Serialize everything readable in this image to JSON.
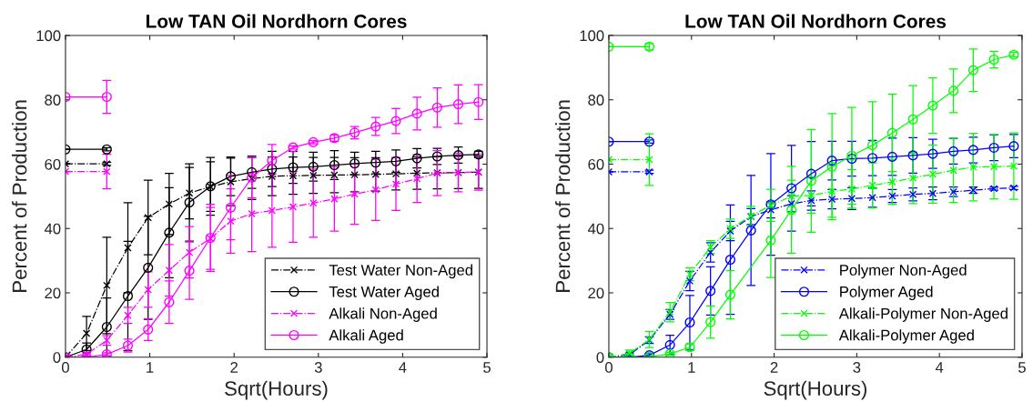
{
  "chart_data": [
    {
      "type": "line",
      "title": "Low TAN Oil Nordhorn Cores",
      "xlabel": "Sqrt(Hours)",
      "ylabel": "Percent of Production",
      "xlim": [
        0,
        5
      ],
      "ylim": [
        0,
        100
      ],
      "xticks": [
        0,
        1,
        2,
        3,
        4,
        5
      ],
      "yticks": [
        0,
        20,
        40,
        60,
        80,
        100
      ],
      "grid": false,
      "legend": "bottom right",
      "x": [
        0,
        0.25,
        0.49,
        0.74,
        0.98,
        1.23,
        1.47,
        1.72,
        1.96,
        2.21,
        2.45,
        2.7,
        2.94,
        3.19,
        3.43,
        3.68,
        3.92,
        4.17,
        4.41,
        4.66,
        4.9
      ],
      "series": [
        {
          "name": "Test Water Non-Aged",
          "color": "#000000",
          "marker": "cross",
          "line_style": "dashdot",
          "values": [
            0,
            7.4,
            22.3,
            34,
            43.4,
            47.6,
            51,
            53,
            54.5,
            55.5,
            56.2,
            56.4,
            56.5,
            56.6,
            56.7,
            56.8,
            57,
            57.2,
            57.3,
            57.4,
            57.5
          ],
          "errors": [
            null,
            5.3,
            15,
            14,
            11.6,
            9.5,
            8,
            7.7,
            7.4,
            6.5,
            6,
            5.8,
            5.6,
            5.5,
            5.3,
            5.2,
            5,
            5,
            5,
            5,
            5
          ]
        },
        {
          "name": "Test Water Aged",
          "color": "#000000",
          "marker": "circle",
          "line_style": "solid",
          "values": [
            0,
            2.4,
            9.4,
            19,
            27.8,
            38.7,
            48.1,
            53.1,
            56.2,
            57.5,
            58.5,
            59,
            59.2,
            59.7,
            60.2,
            60.5,
            60.9,
            61.8,
            62.4,
            62.8,
            63
          ],
          "errors": [
            null,
            2,
            9,
            17,
            16,
            14,
            12,
            9,
            6,
            5,
            5.5,
            5,
            4.5,
            4.5,
            3.5,
            3.5,
            3.5,
            3,
            2.5,
            2.5,
            1
          ]
        },
        {
          "name": "Alkali Non-Aged",
          "color": "#ff00ff",
          "marker": "cross",
          "line_style": "dashdot",
          "values": [
            0,
            0.9,
            5.2,
            13,
            21,
            27,
            32.6,
            36.9,
            42.3,
            44.6,
            45.6,
            46.7,
            47.9,
            49.2,
            50.7,
            52,
            53.8,
            55.5,
            57.2,
            57.4,
            57.5
          ],
          "errors": [
            null,
            0.5,
            1.5,
            2.5,
            5.5,
            8,
            8,
            9.6,
            10,
            11.8,
            11.4,
            11,
            10.6,
            10,
            9.4,
            9.5,
            8.2,
            7.4,
            7,
            6,
            5.6
          ]
        },
        {
          "name": "Alkali Aged",
          "color": "#ff00ff",
          "marker": "circle",
          "line_style": "solid",
          "values": [
            0,
            0,
            0.9,
            3.6,
            8.6,
            17.1,
            26.9,
            37.1,
            46.5,
            55.8,
            61.1,
            65.2,
            66.8,
            68.1,
            69.8,
            71.7,
            73.4,
            75.7,
            77.6,
            78.6,
            79.3
          ],
          "errors": [
            null,
            0.3,
            0.5,
            2,
            3.4,
            6.6,
            8.9,
            10.4,
            10,
            6.3,
            5,
            0.5,
            0.5,
            1,
            1.9,
            2.8,
            3.9,
            5.1,
            6.1,
            6,
            5.4
          ]
        },
        {
          "color": "#000000",
          "marker": "cross",
          "line_style": "dashdot",
          "x": [
            0,
            0.49
          ],
          "values": [
            60.1,
            60.1
          ],
          "errors": [
            null,
            0.5
          ]
        },
        {
          "color": "#000000",
          "marker": "circle",
          "line_style": "solid",
          "x": [
            0,
            0.49
          ],
          "values": [
            64.6,
            64.6
          ],
          "errors": [
            null,
            0.5
          ]
        },
        {
          "color": "#ff00ff",
          "marker": "cross",
          "line_style": "dashdot",
          "x": [
            0,
            0.49
          ],
          "values": [
            57.7,
            57.7
          ],
          "errors": [
            null,
            5.4
          ]
        },
        {
          "color": "#ff00ff",
          "marker": "circle",
          "line_style": "solid",
          "x": [
            0,
            0.49
          ],
          "values": [
            80.9,
            80.9
          ],
          "errors": [
            null,
            5.1
          ]
        }
      ]
    },
    {
      "type": "line",
      "title": "Low TAN Oil Nordhorn Cores",
      "xlabel": "Sqrt(Hours)",
      "ylabel": "Percent of Production",
      "xlim": [
        0,
        5
      ],
      "ylim": [
        0,
        100
      ],
      "xticks": [
        0,
        1,
        2,
        3,
        4,
        5
      ],
      "yticks": [
        0,
        20,
        40,
        60,
        80,
        100
      ],
      "grid": false,
      "legend": "bottom right",
      "x": [
        0,
        0.25,
        0.49,
        0.74,
        0.98,
        1.23,
        1.47,
        1.72,
        1.96,
        2.21,
        2.45,
        2.7,
        2.94,
        3.19,
        3.43,
        3.68,
        3.92,
        4.17,
        4.41,
        4.66,
        4.9
      ],
      "series": [
        {
          "name": "Polymer Non-Aged",
          "color": "#0000ff",
          "marker": "cross",
          "line_style": "dashdot",
          "values": [
            0,
            0.8,
            5.3,
            13.3,
            23.7,
            32.6,
            39.2,
            43.7,
            45.8,
            47.7,
            48.7,
            49.1,
            49.3,
            49.6,
            50.1,
            50.6,
            50.9,
            51.4,
            51.9,
            52.4,
            52.6
          ],
          "errors": [
            null,
            0.5,
            1,
            1.5,
            3,
            3,
            3,
            2.5,
            2.5,
            2.5,
            3,
            3,
            3.4,
            3,
            2,
            2,
            2,
            1.5,
            1,
            0.5,
            0.5
          ]
        },
        {
          "name": "Polymer Aged",
          "color": "#0000ff",
          "marker": "circle",
          "line_style": "solid",
          "values": [
            0,
            0,
            0.6,
            3.8,
            10.8,
            20.6,
            30.3,
            39.4,
            47.5,
            52.5,
            57,
            61.1,
            61.7,
            61.9,
            62.3,
            62.7,
            63.2,
            64,
            64.4,
            65.1,
            65.6
          ],
          "errors": [
            null,
            0.3,
            0.5,
            3,
            8.4,
            7.5,
            17,
            17.1,
            15.8,
            13.3,
            10,
            6,
            5.4,
            5.5,
            5.8,
            5.5,
            4.5,
            4,
            4,
            4,
            3.6
          ]
        },
        {
          "name": "Alkali-Polymer Non-Aged",
          "color": "#00ff00",
          "marker": "cross",
          "line_style": "dashdot",
          "values": [
            0,
            1.2,
            5.5,
            14,
            25.8,
            34.2,
            39.9,
            43.9,
            47.2,
            50,
            50.3,
            51.5,
            52.3,
            53.4,
            54.5,
            55.7,
            56.9,
            58.1,
            59.1,
            59.2,
            59.4
          ],
          "errors": [
            null,
            1,
            2.5,
            3,
            2,
            2,
            3,
            3,
            5,
            5,
            5.5,
            8,
            6,
            7,
            7,
            8,
            9,
            10,
            10.5,
            10,
            10.3
          ]
        },
        {
          "name": "Alkali-Polymer Aged",
          "color": "#00ff00",
          "marker": "circle",
          "line_style": "solid",
          "x": [
            0,
            0.25,
            0.49,
            0.74,
            0.98,
            1.23,
            1.47,
            1.96,
            2.21,
            2.45,
            2.7,
            2.94,
            3.19,
            3.43,
            3.68,
            3.92,
            4.17,
            4.41,
            4.66,
            4.9
          ],
          "values": [
            0,
            0,
            0.1,
            1,
            3.1,
            10.9,
            19.4,
            36.3,
            45.8,
            54.8,
            59.2,
            62.6,
            65.9,
            69.7,
            73.9,
            78.2,
            82.8,
            89.2,
            92.5,
            94
          ],
          "errors": [
            null,
            0.3,
            0.3,
            0.5,
            1,
            5,
            7.5,
            11.5,
            13.5,
            16,
            16.5,
            15,
            13.5,
            12,
            10.5,
            8.6,
            6.8,
            6.6,
            2.6,
            0.7
          ]
        },
        {
          "color": "#0000ff",
          "marker": "cross",
          "line_style": "dashdot",
          "x": [
            0,
            0.49
          ],
          "values": [
            57.6,
            57.6
          ],
          "errors": [
            null,
            0.5
          ]
        },
        {
          "color": "#0000ff",
          "marker": "circle",
          "line_style": "solid",
          "x": [
            0,
            0.49
          ],
          "values": [
            67,
            67
          ],
          "errors": [
            null,
            0.5
          ]
        },
        {
          "color": "#00ff00",
          "marker": "cross",
          "line_style": "dashdot",
          "x": [
            0,
            0.49
          ],
          "values": [
            61.4,
            61.4
          ],
          "errors": [
            null,
            8
          ]
        },
        {
          "color": "#00ff00",
          "marker": "circle",
          "line_style": "solid",
          "x": [
            0,
            0.49
          ],
          "values": [
            96.5,
            96.5
          ],
          "errors": [
            null,
            1
          ]
        }
      ]
    }
  ]
}
